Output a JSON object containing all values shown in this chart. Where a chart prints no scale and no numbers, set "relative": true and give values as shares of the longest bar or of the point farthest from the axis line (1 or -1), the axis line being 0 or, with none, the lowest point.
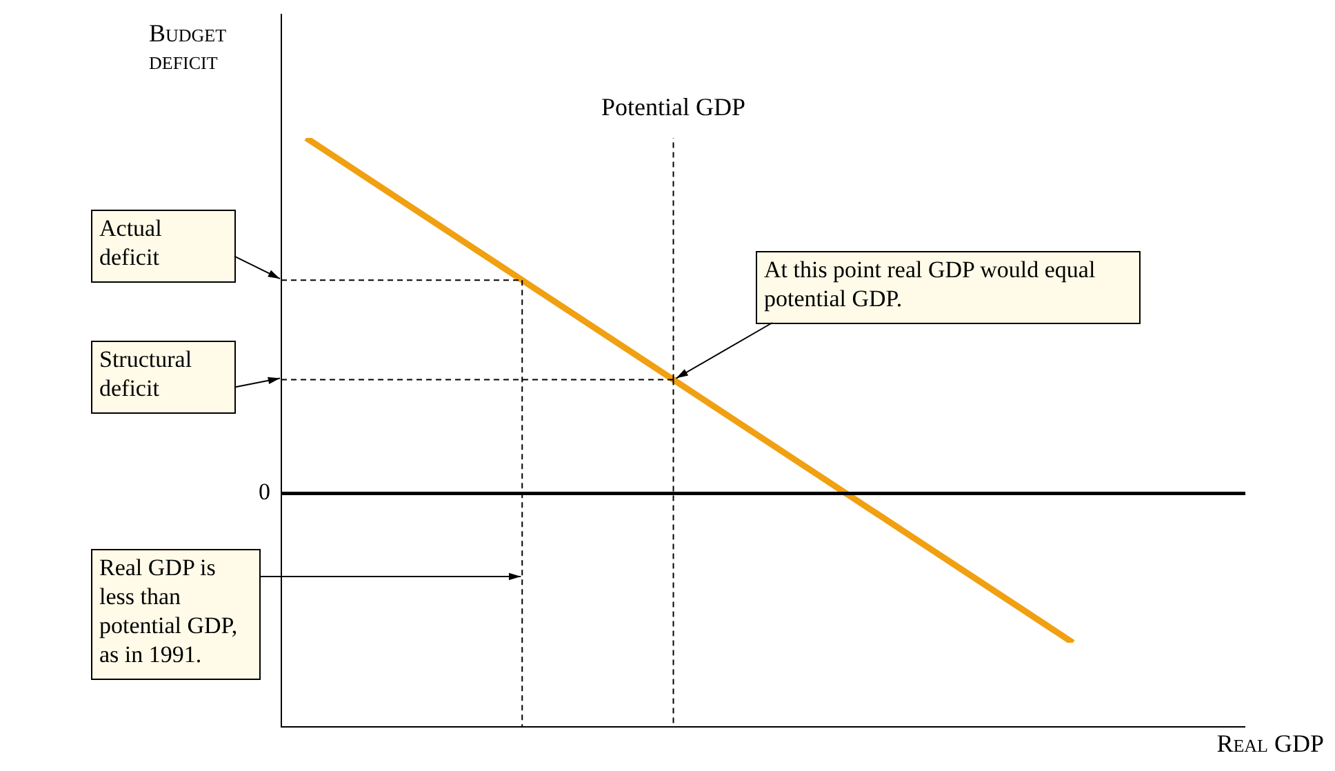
{
  "chart_data": {
    "type": "line",
    "relative": true,
    "xlabel": "Real GDP",
    "ylabel": "Budget deficit",
    "categories": [
      null,
      null
    ],
    "series": [
      {
        "color": "#f0a010",
        "values": [
          1,
          -0.42
        ]
      }
    ],
    "legend": false,
    "marker": "none",
    "line_style": "solid",
    "ref_lines": [
      {
        "axis": "y",
        "value": 0.6,
        "line_style": "dashed"
      },
      {
        "axis": "y",
        "value": 0.32,
        "line_style": "dashed"
      }
    ],
    "annotations": [
      "0",
      "Potential GDP",
      "Actual deficit",
      "Structural deficit",
      "At this point real GDP would equal potential GDP.",
      "Real GDP is less than potential GDP, as in 1991."
    ]
  }
}
